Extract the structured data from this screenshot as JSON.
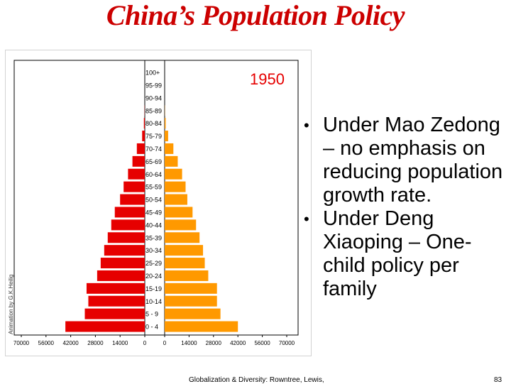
{
  "slide": {
    "title": "China’s Population Policy",
    "bullets": [
      "Under Mao Zedong – no emphasis on reducing population growth rate.",
      "Under Deng Xiaoping – One-child policy per family"
    ],
    "footer": "Globalization & Diversity: Rowntree, Lewis,",
    "page_number": "83"
  },
  "colors": {
    "male": "#e60000",
    "female": "#ff9900",
    "year": "#e60000",
    "axis": "#000000"
  },
  "chart_data": {
    "type": "bar",
    "orientation": "horizontal-population-pyramid",
    "year_label": "1950",
    "credit": "Animation by G.K.Heilig",
    "age_groups": [
      "0 - 4",
      "5 - 9",
      "10-14",
      "15-19",
      "20-24",
      "25-29",
      "30-34",
      "35-39",
      "40-44",
      "45-49",
      "50-54",
      "55-59",
      "60-64",
      "65-69",
      "70-74",
      "75-79",
      "80-84",
      "85-89",
      "90-94",
      "95-99",
      "100+"
    ],
    "series": [
      {
        "values": [
          45000,
          34000,
          32000,
          33000,
          27000,
          25000,
          23000,
          21000,
          19000,
          17000,
          14000,
          12000,
          9500,
          7000,
          4500,
          1500,
          500,
          100,
          0,
          0,
          0
        ]
      },
      {
        "values": [
          42000,
          32000,
          30000,
          30000,
          25000,
          23000,
          22000,
          20000,
          18000,
          16000,
          13000,
          12000,
          10000,
          7500,
          5000,
          2000,
          600,
          100,
          0,
          0,
          0
        ]
      }
    ],
    "left_ticks": [
      "70000",
      "56000",
      "42000",
      "28000",
      "14000",
      "0"
    ],
    "right_ticks": [
      "0",
      "14000",
      "28000",
      "42000",
      "56000",
      "70000"
    ],
    "xlim": [
      0,
      70000
    ],
    "grid": false
  }
}
